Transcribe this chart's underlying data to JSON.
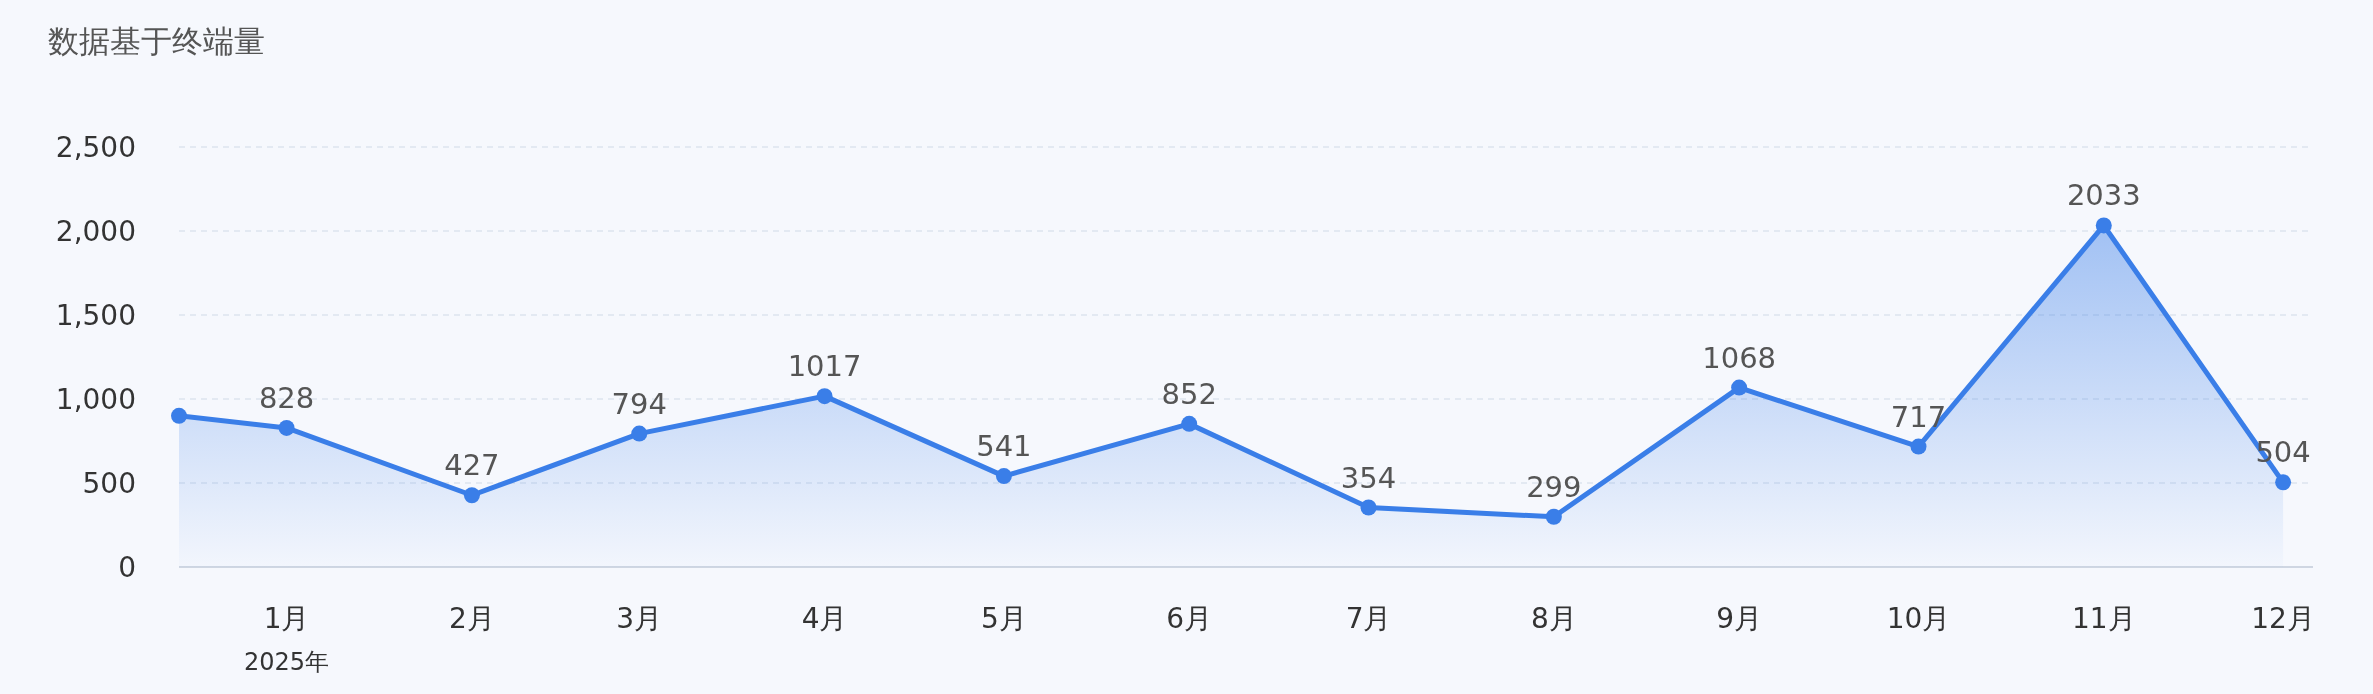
{
  "chart_data": {
    "type": "area",
    "title": "数据基于终端量",
    "x": [
      "2024-12-14",
      "2025-01-01",
      "2025-02-01",
      "2025-03-01",
      "2025-04-01",
      "2025-05-01",
      "2025-06-01",
      "2025-07-01",
      "2025-08-01",
      "2025-09-01",
      "2025-10-01",
      "2025-11-01",
      "2025-12-01"
    ],
    "series": [
      {
        "color": "#3a7ee8",
        "values": [
          900,
          828,
          427,
          794,
          1017,
          541,
          852,
          354,
          299,
          1068,
          717,
          2033,
          504
        ],
        "value_labels": [
          null,
          "828",
          "427",
          "794",
          "1017",
          "541",
          "852",
          "354",
          "299",
          "1068",
          "717",
          "2033",
          "504"
        ]
      }
    ],
    "xlim": [
      "2024-12-14",
      "2025-12-06"
    ],
    "xticks": [
      {
        "value": "2025-01-01",
        "label": "1月\n2025年"
      },
      {
        "value": "2025-02-01",
        "label": "2月"
      },
      {
        "value": "2025-03-01",
        "label": "3月"
      },
      {
        "value": "2025-04-01",
        "label": "4月"
      },
      {
        "value": "2025-05-01",
        "label": "5月"
      },
      {
        "value": "2025-06-01",
        "label": "6月"
      },
      {
        "value": "2025-07-01",
        "label": "7月"
      },
      {
        "value": "2025-08-01",
        "label": "8月"
      },
      {
        "value": "2025-09-01",
        "label": "9月"
      },
      {
        "value": "2025-10-01",
        "label": "10月"
      },
      {
        "value": "2025-11-01",
        "label": "11月"
      },
      {
        "value": "2025-12-01",
        "label": "12月"
      }
    ],
    "ylim": [
      0,
      2500
    ],
    "yticks": [
      {
        "value": 0,
        "label": "0"
      },
      {
        "value": 500,
        "label": "500"
      },
      {
        "value": 1000,
        "label": "1,000"
      },
      {
        "value": 1500,
        "label": "1,500"
      },
      {
        "value": 2000,
        "label": "2,000"
      },
      {
        "value": 2500,
        "label": "2,500"
      }
    ],
    "grid": "y",
    "marker": "circle",
    "line_style": "solid"
  }
}
